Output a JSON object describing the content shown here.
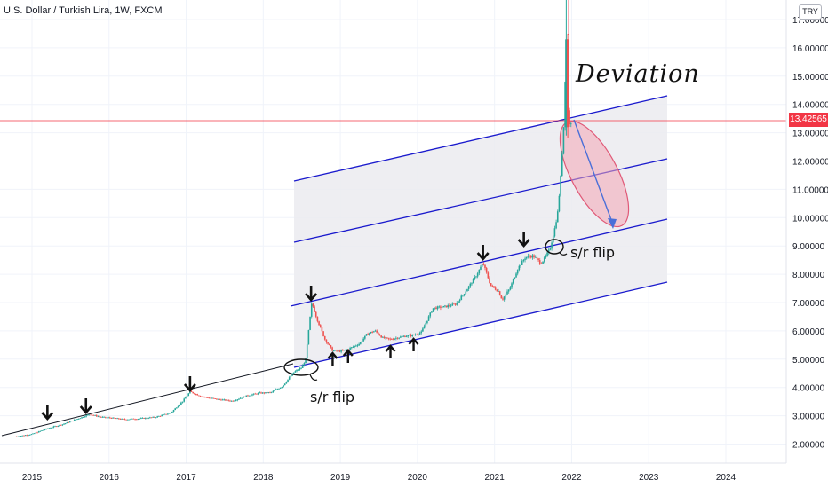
{
  "header": {
    "title": "U.S. Dollar / Turkish Lira, 1W, FXCM",
    "currency_button": "TRY"
  },
  "price_tag": "13.42565",
  "annotations": {
    "deviation": "Deviation",
    "sr_flip_1": "s/r flip",
    "sr_flip_2": "s/r flip"
  },
  "colors": {
    "up_candle": "#26a69a",
    "down_candle": "#ef5350",
    "channel_line": "#1a1acd",
    "channel_fill": "#ebebf0",
    "trendline": "#131722",
    "deviation_ellipse": "#f4a6b4",
    "price_line": "#f23645"
  },
  "chart_data": {
    "type": "candlestick",
    "title": "U.S. Dollar / Turkish Lira, 1W, FXCM",
    "x": [
      "2015",
      "2016",
      "2017",
      "2018",
      "2019",
      "2020",
      "2021",
      "2022",
      "2023",
      "2024"
    ],
    "y_ticks": [
      "2.00000",
      "3.00000",
      "4.00000",
      "5.00000",
      "6.00000",
      "7.00000",
      "8.00000",
      "9.00000",
      "10.00000",
      "11.00000",
      "12.00000",
      "13.00000",
      "14.00000",
      "15.00000",
      "16.00000",
      "17.00000"
    ],
    "ylim": [
      1.6,
      17.9
    ],
    "last_price": 13.42565,
    "series": [
      {
        "values": [
          [
            2014.8,
            2.27
          ],
          [
            2015.0,
            2.35
          ],
          [
            2015.2,
            2.55
          ],
          [
            2015.4,
            2.7
          ],
          [
            2015.6,
            2.9
          ],
          [
            2015.75,
            3.05
          ],
          [
            2015.9,
            2.95
          ],
          [
            2016.0,
            2.93
          ],
          [
            2016.2,
            2.87
          ],
          [
            2016.4,
            2.9
          ],
          [
            2016.6,
            2.95
          ],
          [
            2016.8,
            3.1
          ],
          [
            2016.95,
            3.5
          ],
          [
            2017.05,
            3.85
          ],
          [
            2017.2,
            3.68
          ],
          [
            2017.4,
            3.58
          ],
          [
            2017.6,
            3.52
          ],
          [
            2017.8,
            3.72
          ],
          [
            2017.95,
            3.8
          ],
          [
            2018.1,
            3.82
          ],
          [
            2018.25,
            4.05
          ],
          [
            2018.4,
            4.55
          ],
          [
            2018.5,
            4.7
          ],
          [
            2018.55,
            5.0
          ],
          [
            2018.6,
            6.3
          ],
          [
            2018.63,
            7.0
          ],
          [
            2018.7,
            6.4
          ],
          [
            2018.8,
            5.7
          ],
          [
            2018.9,
            5.3
          ],
          [
            2019.0,
            5.28
          ],
          [
            2019.1,
            5.35
          ],
          [
            2019.25,
            5.55
          ],
          [
            2019.35,
            5.9
          ],
          [
            2019.45,
            6.0
          ],
          [
            2019.55,
            5.75
          ],
          [
            2019.65,
            5.7
          ],
          [
            2019.8,
            5.8
          ],
          [
            2019.95,
            5.85
          ],
          [
            2020.05,
            5.95
          ],
          [
            2020.2,
            6.8
          ],
          [
            2020.35,
            6.85
          ],
          [
            2020.5,
            6.95
          ],
          [
            2020.65,
            7.5
          ],
          [
            2020.75,
            7.9
          ],
          [
            2020.85,
            8.4
          ],
          [
            2020.95,
            7.6
          ],
          [
            2021.05,
            7.4
          ],
          [
            2021.1,
            7.1
          ],
          [
            2021.2,
            7.5
          ],
          [
            2021.3,
            8.2
          ],
          [
            2021.4,
            8.6
          ],
          [
            2021.5,
            8.65
          ],
          [
            2021.6,
            8.4
          ],
          [
            2021.65,
            8.55
          ],
          [
            2021.72,
            8.9
          ],
          [
            2021.78,
            9.6
          ],
          [
            2021.82,
            10.2
          ],
          [
            2021.86,
            11.5
          ],
          [
            2021.9,
            13.4
          ],
          [
            2021.93,
            16.3
          ],
          [
            2021.96,
            13.2
          ],
          [
            2022.0,
            13.43
          ]
        ]
      }
    ],
    "markers": {
      "down_arrows_x": [
        2015.2,
        2015.7,
        2017.05,
        2018.62,
        2020.85,
        2021.38
      ],
      "up_arrows_x": [
        2018.9,
        2019.1,
        2019.65,
        2019.95
      ]
    }
  }
}
